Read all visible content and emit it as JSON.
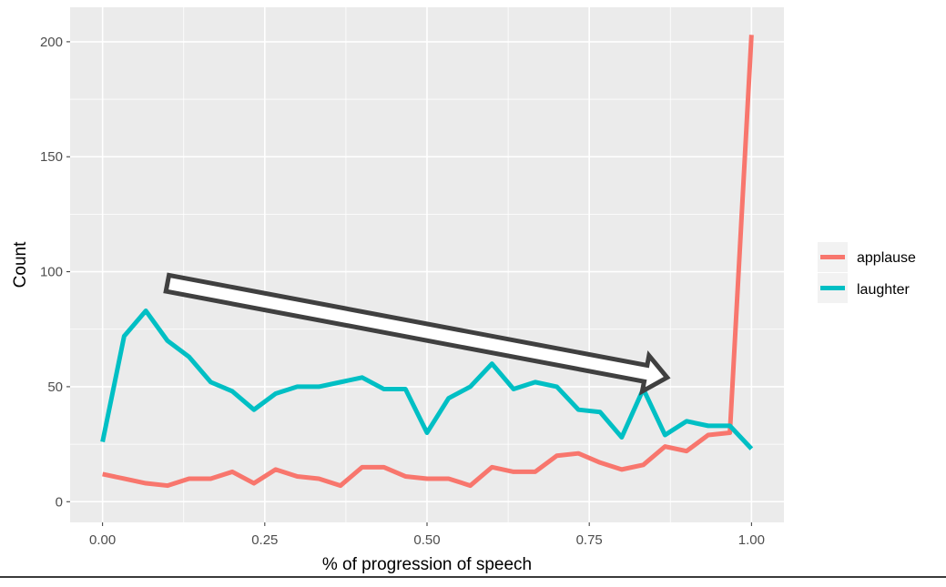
{
  "chart_data": {
    "type": "line",
    "title": "",
    "xlabel": "% of progression of speech",
    "ylabel": "Count",
    "xlim": [
      -0.05,
      1.05
    ],
    "ylim": [
      -9,
      215
    ],
    "x_ticks": [
      0.0,
      0.25,
      0.5,
      0.75,
      1.0
    ],
    "x_tick_labels": [
      "0.00",
      "0.25",
      "0.50",
      "0.75",
      "1.00"
    ],
    "y_ticks": [
      0,
      50,
      100,
      150,
      200
    ],
    "y_tick_labels": [
      "0",
      "50",
      "100",
      "150",
      "200"
    ],
    "grid": true,
    "legend_position": "right",
    "background": "#ebebeb",
    "series": [
      {
        "name": "applause",
        "color": "#f8766d",
        "x": [
          0.0,
          0.0333,
          0.0667,
          0.1,
          0.1333,
          0.1667,
          0.2,
          0.2333,
          0.2667,
          0.3,
          0.3333,
          0.3667,
          0.4,
          0.4333,
          0.4667,
          0.5,
          0.5333,
          0.5667,
          0.6,
          0.6333,
          0.6667,
          0.7,
          0.7333,
          0.7667,
          0.8,
          0.8333,
          0.8667,
          0.9,
          0.9333,
          0.9667,
          1.0
        ],
        "values": [
          12,
          10,
          8,
          7,
          10,
          10,
          13,
          8,
          14,
          11,
          10,
          7,
          15,
          15,
          11,
          10,
          10,
          7,
          15,
          13,
          13,
          20,
          21,
          17,
          14,
          16,
          24,
          22,
          29,
          30,
          203
        ]
      },
      {
        "name": "laughter",
        "color": "#00bfc4",
        "x": [
          0.0,
          0.0333,
          0.0667,
          0.1,
          0.1333,
          0.1667,
          0.2,
          0.2333,
          0.2667,
          0.3,
          0.3333,
          0.3667,
          0.4,
          0.4333,
          0.4667,
          0.5,
          0.5333,
          0.5667,
          0.6,
          0.6333,
          0.6667,
          0.7,
          0.7333,
          0.7667,
          0.8,
          0.8333,
          0.8667,
          0.9,
          0.9333,
          0.9667,
          1.0
        ],
        "values": [
          26,
          72,
          83,
          70,
          63,
          52,
          48,
          40,
          47,
          50,
          50,
          52,
          54,
          49,
          49,
          30,
          45,
          50,
          60,
          49,
          52,
          50,
          40,
          39,
          28,
          49,
          29,
          35,
          33,
          33,
          23
        ]
      }
    ],
    "annotations": [
      {
        "type": "arrow",
        "from": [
          0.1,
          95
        ],
        "to": [
          0.87,
          54
        ],
        "fill": "#ffffff",
        "stroke": "#404040"
      }
    ]
  }
}
